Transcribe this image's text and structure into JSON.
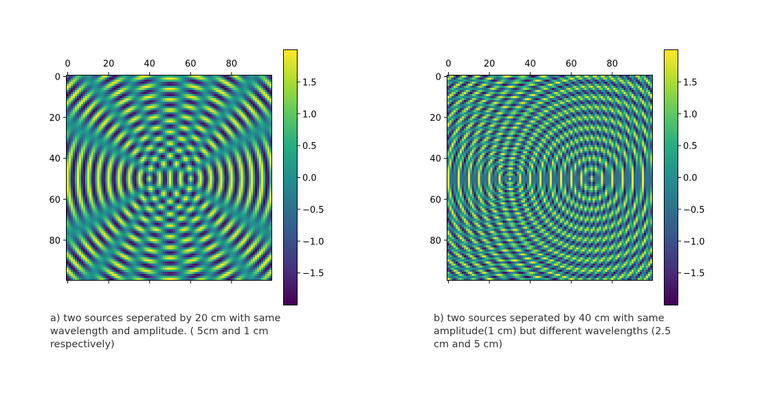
{
  "chart_data": [
    {
      "type": "heatmap",
      "title": "",
      "xlabel": "",
      "ylabel": "",
      "grid_size": [
        100,
        100
      ],
      "x_ticks": [
        0,
        20,
        40,
        60,
        80
      ],
      "y_ticks": [
        0,
        20,
        40,
        60,
        80
      ],
      "xlim": [
        0,
        99
      ],
      "ylim": [
        99,
        0
      ],
      "x_axis_position": "top",
      "colormap": "viridis",
      "colorbar": {
        "vmin": -2,
        "vmax": 2,
        "ticks": [
          1.5,
          1.0,
          0.5,
          0.0,
          -0.5,
          -1.0,
          -1.5
        ],
        "tick_labels": [
          "1.5",
          "1.0",
          "0.5",
          "0.0",
          "−0.5",
          "−1.0",
          "−1.5"
        ]
      },
      "sources": [
        {
          "x": 40,
          "y": 50,
          "wavelength": 5,
          "amplitude": 1
        },
        {
          "x": 60,
          "y": 50,
          "wavelength": 5,
          "amplitude": 1
        }
      ],
      "caption": "a) two sources seperated by 20 cm with same\nwavelength and amplitude. ( 5cm and 1 cm\nrespectively)"
    },
    {
      "type": "heatmap",
      "title": "",
      "xlabel": "",
      "ylabel": "",
      "grid_size": [
        100,
        100
      ],
      "x_ticks": [
        0,
        20,
        40,
        60,
        80
      ],
      "y_ticks": [
        0,
        20,
        40,
        60,
        80
      ],
      "xlim": [
        0,
        99
      ],
      "ylim": [
        99,
        0
      ],
      "x_axis_position": "top",
      "colormap": "viridis",
      "colorbar": {
        "vmin": -2,
        "vmax": 2,
        "ticks": [
          1.5,
          1.0,
          0.5,
          0.0,
          -0.5,
          -1.0,
          -1.5
        ],
        "tick_labels": [
          "1.5",
          "1.0",
          "0.5",
          "0.0",
          "−0.5",
          "−1.0",
          "−1.5"
        ]
      },
      "sources": [
        {
          "x": 30,
          "y": 50,
          "wavelength": 2.5,
          "amplitude": 1
        },
        {
          "x": 70,
          "y": 50,
          "wavelength": 5,
          "amplitude": 1
        }
      ],
      "caption": "b) two sources seperated by 40 cm with same\namplitude(1 cm) but different wavelengths (2.5\ncm and 5 cm)"
    }
  ]
}
